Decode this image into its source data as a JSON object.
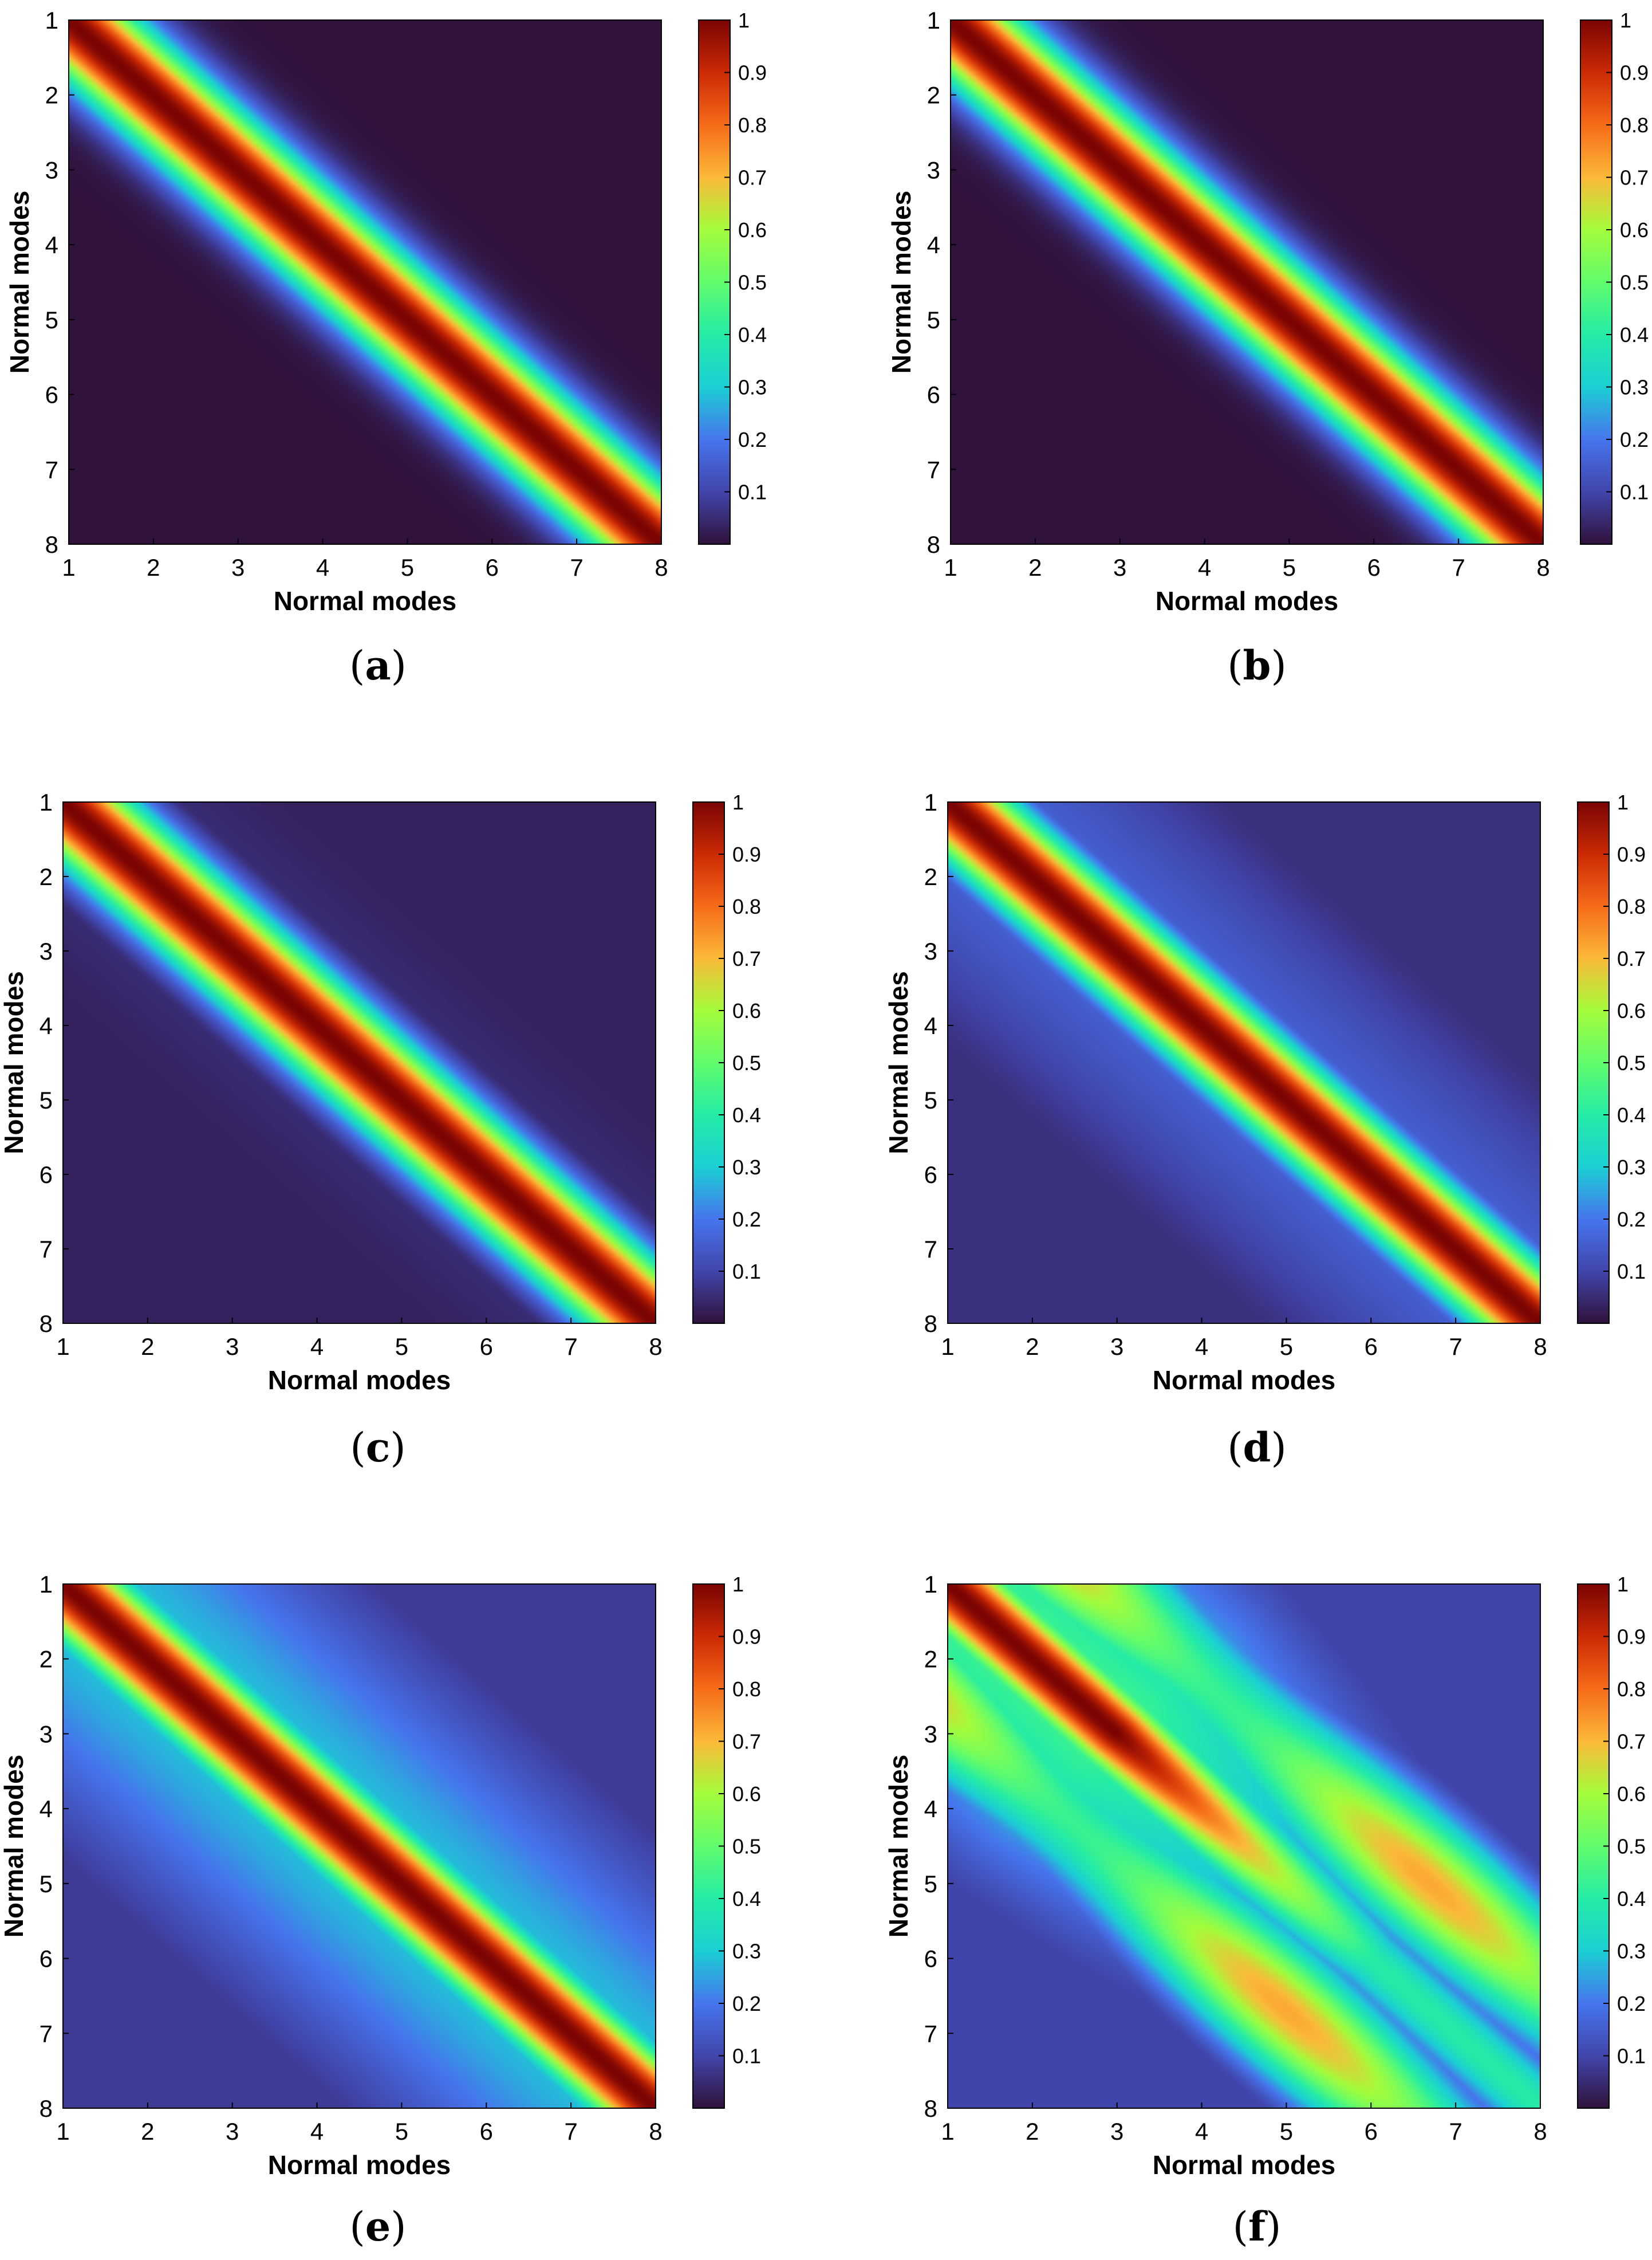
{
  "figure": {
    "x_label": "Normal modes",
    "y_label": "Normal modes",
    "colorbar_ticks": [
      "0.1",
      "0.2",
      "0.3",
      "0.4",
      "0.5",
      "0.6",
      "0.7",
      "0.8",
      "0.9",
      "1"
    ]
  },
  "panels": [
    {
      "label": "a"
    },
    {
      "label": "b"
    },
    {
      "label": "c"
    },
    {
      "label": "d"
    },
    {
      "label": "e"
    },
    {
      "label": "f"
    }
  ],
  "chart_data": [
    {
      "type": "heatmap",
      "panel": "a",
      "xlabel": "Normal modes",
      "ylabel": "Normal modes",
      "x_ticks": [
        1,
        2,
        3,
        4,
        5,
        6,
        7,
        8
      ],
      "y_ticks": [
        1,
        2,
        3,
        4,
        5,
        6,
        7,
        8
      ],
      "xlim": [
        1,
        8
      ],
      "ylim": [
        1,
        8
      ],
      "clim": [
        0,
        1
      ],
      "colorbar_ticks": [
        0.1,
        0.2,
        0.3,
        0.4,
        0.5,
        0.6,
        0.7,
        0.8,
        0.9,
        1
      ],
      "colormap": "turbo",
      "band_halfwidth": 0.65,
      "background": 0.0,
      "shoulder": 0.0,
      "off_diagonal_peak": 0.0
    },
    {
      "type": "heatmap",
      "panel": "b",
      "xlabel": "Normal modes",
      "ylabel": "Normal modes",
      "x_ticks": [
        1,
        2,
        3,
        4,
        5,
        6,
        7,
        8
      ],
      "y_ticks": [
        1,
        2,
        3,
        4,
        5,
        6,
        7,
        8
      ],
      "xlim": [
        1,
        8
      ],
      "ylim": [
        1,
        8
      ],
      "clim": [
        0,
        1
      ],
      "colorbar_ticks": [
        0.1,
        0.2,
        0.3,
        0.4,
        0.5,
        0.6,
        0.7,
        0.8,
        0.9,
        1
      ],
      "colormap": "turbo",
      "band_halfwidth": 0.65,
      "background": 0.0,
      "shoulder": 0.0,
      "off_diagonal_peak": 0.0
    },
    {
      "type": "heatmap",
      "panel": "c",
      "xlabel": "Normal modes",
      "ylabel": "Normal modes",
      "x_ticks": [
        1,
        2,
        3,
        4,
        5,
        6,
        7,
        8
      ],
      "y_ticks": [
        1,
        2,
        3,
        4,
        5,
        6,
        7,
        8
      ],
      "xlim": [
        1,
        8
      ],
      "ylim": [
        1,
        8
      ],
      "clim": [
        0,
        1
      ],
      "colorbar_ticks": [
        0.1,
        0.2,
        0.3,
        0.4,
        0.5,
        0.6,
        0.7,
        0.8,
        0.9,
        1
      ],
      "colormap": "turbo",
      "band_halfwidth": 0.65,
      "background": 0.03,
      "shoulder": 0.06,
      "off_diagonal_peak": 0.0
    },
    {
      "type": "heatmap",
      "panel": "d",
      "xlabel": "Normal modes",
      "ylabel": "Normal modes",
      "x_ticks": [
        1,
        2,
        3,
        4,
        5,
        6,
        7,
        8
      ],
      "y_ticks": [
        1,
        2,
        3,
        4,
        5,
        6,
        7,
        8
      ],
      "xlim": [
        1,
        8
      ],
      "ylim": [
        1,
        8
      ],
      "clim": [
        0,
        1
      ],
      "colorbar_ticks": [
        0.1,
        0.2,
        0.3,
        0.4,
        0.5,
        0.6,
        0.7,
        0.8,
        0.9,
        1
      ],
      "colormap": "turbo",
      "band_halfwidth": 0.62,
      "background": 0.06,
      "shoulder": 0.17,
      "off_diagonal_peak": 0.0
    },
    {
      "type": "heatmap",
      "panel": "e",
      "xlabel": "Normal modes",
      "ylabel": "Normal modes",
      "x_ticks": [
        1,
        2,
        3,
        4,
        5,
        6,
        7,
        8
      ],
      "y_ticks": [
        1,
        2,
        3,
        4,
        5,
        6,
        7,
        8
      ],
      "xlim": [
        1,
        8
      ],
      "ylim": [
        1,
        8
      ],
      "clim": [
        0,
        1
      ],
      "colorbar_ticks": [
        0.1,
        0.2,
        0.3,
        0.4,
        0.5,
        0.6,
        0.7,
        0.8,
        0.9,
        1
      ],
      "colormap": "turbo",
      "band_halfwidth": 0.62,
      "background": 0.08,
      "shoulder": 0.3,
      "off_diagonal_peak": 0.0
    },
    {
      "type": "heatmap",
      "panel": "f",
      "xlabel": "Normal modes",
      "ylabel": "Normal modes",
      "x_ticks": [
        1,
        2,
        3,
        4,
        5,
        6,
        7,
        8
      ],
      "y_ticks": [
        1,
        2,
        3,
        4,
        5,
        6,
        7,
        8
      ],
      "xlim": [
        1,
        8
      ],
      "ylim": [
        1,
        8
      ],
      "clim": [
        0,
        1
      ],
      "colorbar_ticks": [
        0.1,
        0.2,
        0.3,
        0.4,
        0.5,
        0.6,
        0.7,
        0.8,
        0.9,
        1
      ],
      "colormap": "turbo",
      "band_halfwidth": 0.6,
      "background": 0.1,
      "shoulder": 0.45,
      "off_diagonal_peak": 0.72
    }
  ]
}
